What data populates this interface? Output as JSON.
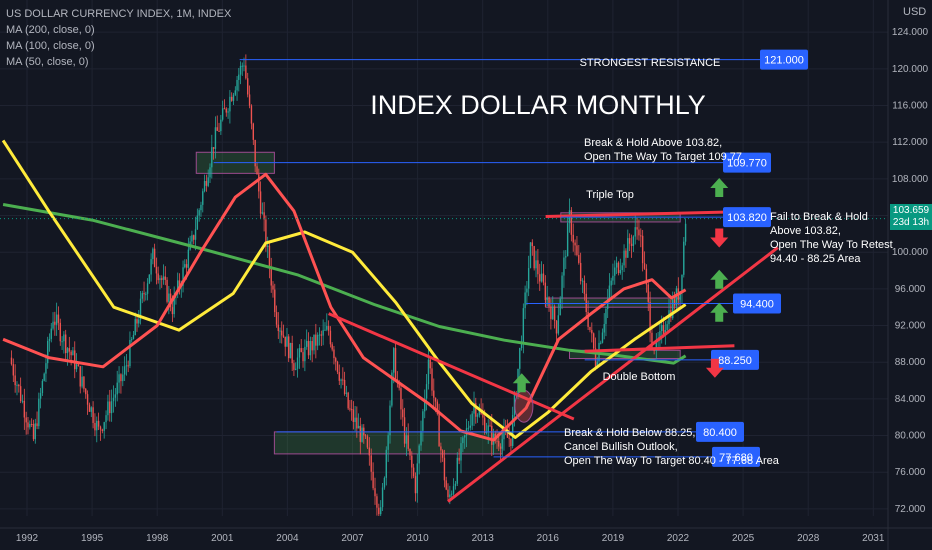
{
  "legend": {
    "symbol": "US DOLLAR CURRENCY INDEX, 1M, INDEX",
    "ma200": "MA (200, close, 0)",
    "ma100": "MA (100, close, 0)",
    "ma50": "MA (50, close, 0)"
  },
  "axis": {
    "unit": "USD",
    "current_price": "103.659",
    "countdown": "23d 13h"
  },
  "colors": {
    "background": "#131722",
    "bull": "#26a69a",
    "bear": "#ef5350",
    "ma200": "#4caf50",
    "ma100": "#ffeb3b",
    "ma50": "#ff5252",
    "trend": "#f23645",
    "label_blue": "#2962ff",
    "arrow_green": "#4caf50",
    "arrow_red": "#f23645"
  },
  "chart_data": {
    "type": "candlestick",
    "title": "INDEX DOLLAR  MONTHLY",
    "x_ticks": [
      "1992",
      "1995",
      "1998",
      "2001",
      "2004",
      "2007",
      "2010",
      "2013",
      "2016",
      "2019",
      "2022",
      "2025",
      "2028",
      "2031"
    ],
    "y_ticks": [
      "124.000",
      "120.000",
      "116.000",
      "112.000",
      "108.000",
      "104.000",
      "100.000",
      "96.000",
      "92.000",
      "88.000",
      "84.000",
      "80.000",
      "76.000",
      "72.000"
    ],
    "ylim": [
      69.5,
      125
    ],
    "price_path": [
      [
        1991.2,
        88.5
      ],
      [
        1992.3,
        79.5
      ],
      [
        1993.2,
        93
      ],
      [
        1994.2,
        88
      ],
      [
        1995.3,
        80.5
      ],
      [
        1996.5,
        87
      ],
      [
        1997.8,
        99.5
      ],
      [
        1998.7,
        94
      ],
      [
        1999.6,
        101
      ],
      [
        2000.6,
        112
      ],
      [
        2001.6,
        118.5
      ],
      [
        2002.0,
        120.9
      ],
      [
        2002.6,
        108
      ],
      [
        2003.5,
        93
      ],
      [
        2004.3,
        88
      ],
      [
        2005.9,
        91.5
      ],
      [
        2006.8,
        83
      ],
      [
        2007.6,
        79
      ],
      [
        2008.3,
        71.3
      ],
      [
        2008.9,
        88.5
      ],
      [
        2009.4,
        80
      ],
      [
        2009.9,
        74.5
      ],
      [
        2010.5,
        88.5
      ],
      [
        2011.4,
        72.7
      ],
      [
        2012.6,
        83.5
      ],
      [
        2013.5,
        79.5
      ],
      [
        2014.3,
        79.8
      ],
      [
        2015.2,
        100.3
      ],
      [
        2016.4,
        92
      ],
      [
        2017.0,
        103.8
      ],
      [
        2018.2,
        88.2
      ],
      [
        2019.0,
        97.5
      ],
      [
        2020.2,
        102.9
      ],
      [
        2020.8,
        90.5
      ],
      [
        2021.0,
        89.2
      ],
      [
        2021.5,
        93
      ],
      [
        2022.1,
        96
      ],
      [
        2022.35,
        103.659
      ]
    ],
    "moving_averages": [
      {
        "name": "MA (200, close, 0)",
        "points": [
          [
            1990.9,
            105.2
          ],
          [
            1995,
            103.5
          ],
          [
            2000,
            100.4
          ],
          [
            2004.5,
            97.5
          ],
          [
            2008,
            94.3
          ],
          [
            2011,
            91.9
          ],
          [
            2014,
            90.4
          ],
          [
            2017,
            89.3
          ],
          [
            2019,
            88.8
          ],
          [
            2021.8,
            87.9
          ],
          [
            2022.35,
            88.7
          ]
        ]
      },
      {
        "name": "MA (100, close, 0)",
        "points": [
          [
            1990.9,
            112.2
          ],
          [
            1993,
            104.5
          ],
          [
            1996,
            94
          ],
          [
            1999,
            91.5
          ],
          [
            2001.5,
            95.5
          ],
          [
            2003,
            101
          ],
          [
            2004.8,
            102.2
          ],
          [
            2007,
            100
          ],
          [
            2009,
            94.5
          ],
          [
            2011,
            88
          ],
          [
            2012.5,
            83.5
          ],
          [
            2014.5,
            79.8
          ],
          [
            2016,
            82.5
          ],
          [
            2018,
            87
          ],
          [
            2020,
            90.5
          ],
          [
            2022.35,
            94.3
          ]
        ]
      },
      {
        "name": "MA (50, close, 0)",
        "points": [
          [
            1990.9,
            90.5
          ],
          [
            1993,
            88.5
          ],
          [
            1995.5,
            87.5
          ],
          [
            1998,
            92
          ],
          [
            2000,
            100
          ],
          [
            2001.6,
            106
          ],
          [
            2003.0,
            108.5
          ],
          [
            2004.3,
            104.5
          ],
          [
            2006,
            94
          ],
          [
            2007.5,
            88.5
          ],
          [
            2009,
            86
          ],
          [
            2010.5,
            83.5
          ],
          [
            2012,
            80.5
          ],
          [
            2013.5,
            79.5
          ],
          [
            2015,
            83
          ],
          [
            2016.5,
            90.5
          ],
          [
            2018,
            93.3
          ],
          [
            2019.5,
            96
          ],
          [
            2020.8,
            97
          ],
          [
            2021.7,
            95
          ],
          [
            2022.35,
            95.9
          ]
        ]
      }
    ],
    "trend_lines": [
      {
        "from": [
          2005.9,
          93.3
        ],
        "to": [
          2017.2,
          81.8
        ]
      },
      {
        "from": [
          2011.4,
          72.8
        ],
        "to": [
          2026.6,
          100.5
        ]
      },
      {
        "from": [
          2017.7,
          89.2
        ],
        "to": [
          2024.6,
          89.8
        ]
      },
      {
        "from": [
          2015.9,
          103.9
        ],
        "to": [
          2024.6,
          104.4
        ]
      }
    ],
    "levels": [
      {
        "price": 121.0,
        "label": "121.000",
        "text": "STRONGEST RESISTANCE",
        "from": 2001.8
      },
      {
        "price": 109.77,
        "label": "109.770",
        "text": "",
        "from": 2000.6
      },
      {
        "price": 103.82,
        "label": "103.820",
        "text": "Triple Top",
        "from": 2016.6
      },
      {
        "price": 94.4,
        "label": "94.400",
        "text": "",
        "from": 2015.0
      },
      {
        "price": 88.25,
        "label": "88.250",
        "text": "Double Bottom",
        "from": 2017.7
      },
      {
        "price": 80.4,
        "label": "80.400",
        "text": "",
        "from": 2003.5
      },
      {
        "price": 77.68,
        "label": "77.680",
        "text": "",
        "from": 2013.5
      }
    ],
    "zones": [
      {
        "x": [
          1999.8,
          2003.4
        ],
        "y": [
          108.6,
          110.9
        ]
      },
      {
        "x": [
          2003.4,
          2013.9
        ],
        "y": [
          78.0,
          80.4
        ]
      },
      {
        "x": [
          2015.9,
          2022.1
        ],
        "y": [
          94.0,
          95.0
        ]
      },
      {
        "x": [
          2017.0,
          2022.1
        ],
        "y": [
          88.4,
          89.3
        ]
      },
      {
        "x": [
          2016.6,
          2022.1
        ],
        "y": [
          103.3,
          104.3
        ]
      }
    ],
    "arrows": [
      {
        "x": 2014.8,
        "y": 85.7,
        "dir": "up"
      },
      {
        "x": 2023.9,
        "y": 107.0,
        "dir": "up"
      },
      {
        "x": 2023.9,
        "y": 101.6,
        "dir": "down"
      },
      {
        "x": 2023.9,
        "y": 97.0,
        "dir": "up"
      },
      {
        "x": 2023.9,
        "y": 93.4,
        "dir": "up"
      },
      {
        "x": 2023.7,
        "y": 87.4,
        "dir": "down"
      }
    ],
    "annotations": [
      {
        "id": "a1",
        "lines": [
          "Break & Hold Above 103.82,",
          "Open The Way To Target 109.77"
        ]
      },
      {
        "id": "a2",
        "lines": [
          "Fail to Break & Hold",
          "Above 103.82,",
          "Open The Way  To Retest",
          "94.40 - 88.25 Area"
        ]
      },
      {
        "id": "a3",
        "lines": [
          "Break & Hold Below 88.25,",
          "Cancel Bullish Outlook,",
          "Open The Way To Target 80.40 - 77.68 Area"
        ]
      }
    ]
  }
}
